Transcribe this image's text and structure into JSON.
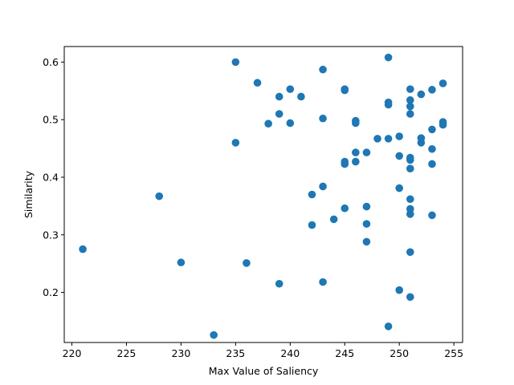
{
  "chart_data": {
    "type": "scatter",
    "title": "",
    "xlabel": "Max Value of Saliency",
    "ylabel": "Similarity",
    "xlim": [
      219.3,
      255.8
    ],
    "ylim": [
      0.113,
      0.627
    ],
    "xticks": [
      220,
      225,
      230,
      235,
      240,
      245,
      250,
      255
    ],
    "yticks": [
      0.2,
      0.3,
      0.4,
      0.5,
      0.6
    ],
    "ytick_labels": [
      "0.2",
      "0.3",
      "0.4",
      "0.5",
      "0.6"
    ],
    "grid": false,
    "marker_color": "#1f77b4",
    "series": [
      {
        "points": [
          [
            221,
            0.275
          ],
          [
            228,
            0.367
          ],
          [
            230,
            0.252
          ],
          [
            233,
            0.126
          ],
          [
            235,
            0.6
          ],
          [
            235,
            0.46
          ],
          [
            236,
            0.251
          ],
          [
            237,
            0.564
          ],
          [
            238,
            0.493
          ],
          [
            239,
            0.54
          ],
          [
            239,
            0.51
          ],
          [
            239,
            0.215
          ],
          [
            240,
            0.553
          ],
          [
            240,
            0.494
          ],
          [
            241,
            0.54
          ],
          [
            242,
            0.37
          ],
          [
            242,
            0.317
          ],
          [
            243,
            0.587
          ],
          [
            243,
            0.502
          ],
          [
            243,
            0.384
          ],
          [
            243,
            0.218
          ],
          [
            244,
            0.327
          ],
          [
            245,
            0.553
          ],
          [
            245,
            0.551
          ],
          [
            245,
            0.427
          ],
          [
            245,
            0.423
          ],
          [
            245,
            0.346
          ],
          [
            246,
            0.498
          ],
          [
            246,
            0.494
          ],
          [
            246,
            0.443
          ],
          [
            246,
            0.427
          ],
          [
            247,
            0.443
          ],
          [
            247,
            0.349
          ],
          [
            247,
            0.319
          ],
          [
            247,
            0.288
          ],
          [
            248,
            0.467
          ],
          [
            249,
            0.608
          ],
          [
            249,
            0.53
          ],
          [
            249,
            0.526
          ],
          [
            249,
            0.467
          ],
          [
            249,
            0.141
          ],
          [
            250,
            0.471
          ],
          [
            250,
            0.437
          ],
          [
            250,
            0.381
          ],
          [
            250,
            0.204
          ],
          [
            251,
            0.553
          ],
          [
            251,
            0.534
          ],
          [
            251,
            0.523
          ],
          [
            251,
            0.51
          ],
          [
            251,
            0.434
          ],
          [
            251,
            0.43
          ],
          [
            251,
            0.415
          ],
          [
            251,
            0.362
          ],
          [
            251,
            0.345
          ],
          [
            251,
            0.336
          ],
          [
            251,
            0.27
          ],
          [
            251,
            0.192
          ],
          [
            252,
            0.544
          ],
          [
            252,
            0.468
          ],
          [
            252,
            0.46
          ],
          [
            253,
            0.552
          ],
          [
            253,
            0.483
          ],
          [
            253,
            0.449
          ],
          [
            253,
            0.423
          ],
          [
            253,
            0.334
          ],
          [
            254,
            0.563
          ],
          [
            254,
            0.496
          ],
          [
            254,
            0.491
          ]
        ]
      }
    ]
  }
}
